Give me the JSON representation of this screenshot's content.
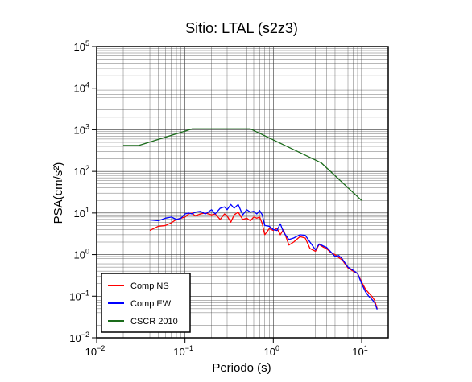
{
  "chart_data": {
    "type": "line",
    "title": "Sitio: LTAL (s2z3)",
    "xlabel": "Periodo (s)",
    "ylabel": "PSA(cm/s²)",
    "xscale": "log",
    "yscale": "log",
    "xlim": [
      0.01,
      20
    ],
    "ylim": [
      0.01,
      100000
    ],
    "grid": true,
    "legend_position": "bottom-left",
    "x_ticks": [
      {
        "value": 0.01,
        "base": "10",
        "exp": "−2"
      },
      {
        "value": 0.1,
        "base": "10",
        "exp": "−1"
      },
      {
        "value": 1,
        "base": "10",
        "exp": "0"
      },
      {
        "value": 10,
        "base": "10",
        "exp": "1"
      }
    ],
    "y_ticks": [
      {
        "value": 0.01,
        "base": "10",
        "exp": "−2"
      },
      {
        "value": 0.1,
        "base": "10",
        "exp": "−1"
      },
      {
        "value": 1,
        "base": "10",
        "exp": "0"
      },
      {
        "value": 10,
        "base": "10",
        "exp": "1"
      },
      {
        "value": 100,
        "base": "10",
        "exp": "2"
      },
      {
        "value": 1000,
        "base": "10",
        "exp": "3"
      },
      {
        "value": 10000,
        "base": "10",
        "exp": "4"
      },
      {
        "value": 100000,
        "base": "10",
        "exp": "5"
      }
    ],
    "series": [
      {
        "name": "Comp NS",
        "color": "#ff0000",
        "x": [
          0.04,
          0.05,
          0.06,
          0.07,
          0.08,
          0.09,
          0.1,
          0.11,
          0.12,
          0.13,
          0.15,
          0.17,
          0.2,
          0.22,
          0.25,
          0.28,
          0.3,
          0.33,
          0.36,
          0.4,
          0.45,
          0.5,
          0.55,
          0.6,
          0.65,
          0.7,
          0.75,
          0.8,
          0.9,
          1.0,
          1.1,
          1.2,
          1.3,
          1.5,
          1.7,
          2.0,
          2.3,
          2.6,
          3.0,
          3.3,
          3.7,
          4.0,
          4.5,
          5.0,
          5.5,
          6.0,
          7.0,
          8.0,
          9.0,
          10.0,
          11.0,
          12.0,
          13.0,
          14.0,
          15.0
        ],
        "y": [
          3.8,
          4.8,
          5.0,
          5.8,
          7.0,
          7.5,
          8.0,
          9.5,
          10.0,
          8.5,
          9.5,
          10.0,
          9.0,
          9.5,
          7.0,
          9.5,
          8.5,
          6.0,
          9.0,
          10.5,
          7.0,
          7.5,
          6.5,
          8.0,
          7.5,
          8.0,
          5.5,
          3.0,
          4.2,
          3.8,
          4.3,
          3.0,
          4.0,
          1.7,
          2.0,
          2.7,
          2.5,
          1.4,
          1.2,
          1.75,
          1.5,
          1.4,
          1.1,
          1.0,
          0.85,
          0.75,
          0.48,
          0.4,
          0.35,
          0.22,
          0.15,
          0.12,
          0.1,
          0.08,
          0.05
        ]
      },
      {
        "name": "Comp EW",
        "color": "#0000ff",
        "x": [
          0.04,
          0.05,
          0.06,
          0.07,
          0.08,
          0.09,
          0.1,
          0.11,
          0.12,
          0.13,
          0.15,
          0.17,
          0.2,
          0.22,
          0.25,
          0.28,
          0.3,
          0.33,
          0.36,
          0.4,
          0.45,
          0.5,
          0.55,
          0.6,
          0.65,
          0.7,
          0.75,
          0.8,
          0.9,
          1.0,
          1.1,
          1.2,
          1.3,
          1.5,
          1.7,
          2.0,
          2.3,
          2.6,
          3.0,
          3.3,
          3.7,
          4.0,
          4.5,
          5.0,
          5.5,
          6.0,
          7.0,
          8.0,
          9.0,
          10.0,
          11.0,
          12.0,
          13.0,
          14.0,
          15.0
        ],
        "y": [
          6.8,
          6.5,
          7.5,
          8.0,
          7.0,
          7.5,
          9.5,
          10.0,
          9.5,
          10.5,
          11.0,
          9.5,
          12.0,
          9.5,
          13.0,
          14.0,
          12.0,
          16.0,
          13.0,
          16.0,
          9.0,
          12.0,
          10.5,
          11.0,
          9.5,
          11.5,
          9.0,
          5.0,
          4.8,
          4.0,
          3.8,
          5.5,
          3.5,
          2.3,
          2.5,
          3.0,
          2.9,
          2.0,
          1.3,
          1.8,
          1.6,
          1.5,
          1.15,
          0.9,
          0.95,
          0.8,
          0.5,
          0.42,
          0.35,
          0.2,
          0.13,
          0.1,
          0.085,
          0.07,
          0.048
        ]
      },
      {
        "name": "CSCR 2010",
        "color": "#1a6b1a",
        "x": [
          0.02,
          0.03,
          0.12,
          0.55,
          3.5,
          10.0
        ],
        "y": [
          420,
          420,
          1050,
          1050,
          160,
          20
        ]
      }
    ]
  }
}
